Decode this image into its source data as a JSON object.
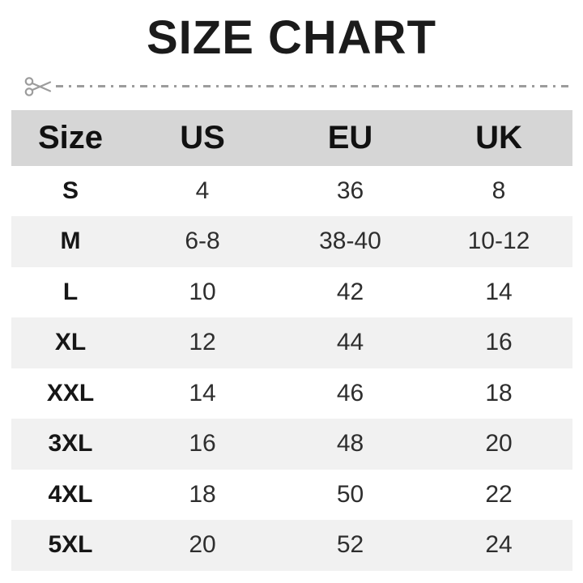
{
  "title": "SIZE CHART",
  "icons": {
    "scissors": "✂"
  },
  "colors": {
    "header_bg": "#d6d6d6",
    "row_alt_bg": "#f1f1f1",
    "cut_line": "#9c9c9c",
    "title_text": "#1b1b1b",
    "body_text": "#2e2e2e"
  },
  "chart_data": {
    "type": "table",
    "title": "SIZE CHART",
    "columns": [
      "Size",
      "US",
      "EU",
      "UK"
    ],
    "rows": [
      [
        "S",
        "4",
        "36",
        "8"
      ],
      [
        "M",
        "6-8",
        "38-40",
        "10-12"
      ],
      [
        "L",
        "10",
        "42",
        "14"
      ],
      [
        "XL",
        "12",
        "44",
        "16"
      ],
      [
        "XXL",
        "14",
        "46",
        "18"
      ],
      [
        "3XL",
        "16",
        "48",
        "20"
      ],
      [
        "4XL",
        "18",
        "50",
        "22"
      ],
      [
        "5XL",
        "20",
        "52",
        "24"
      ]
    ]
  }
}
